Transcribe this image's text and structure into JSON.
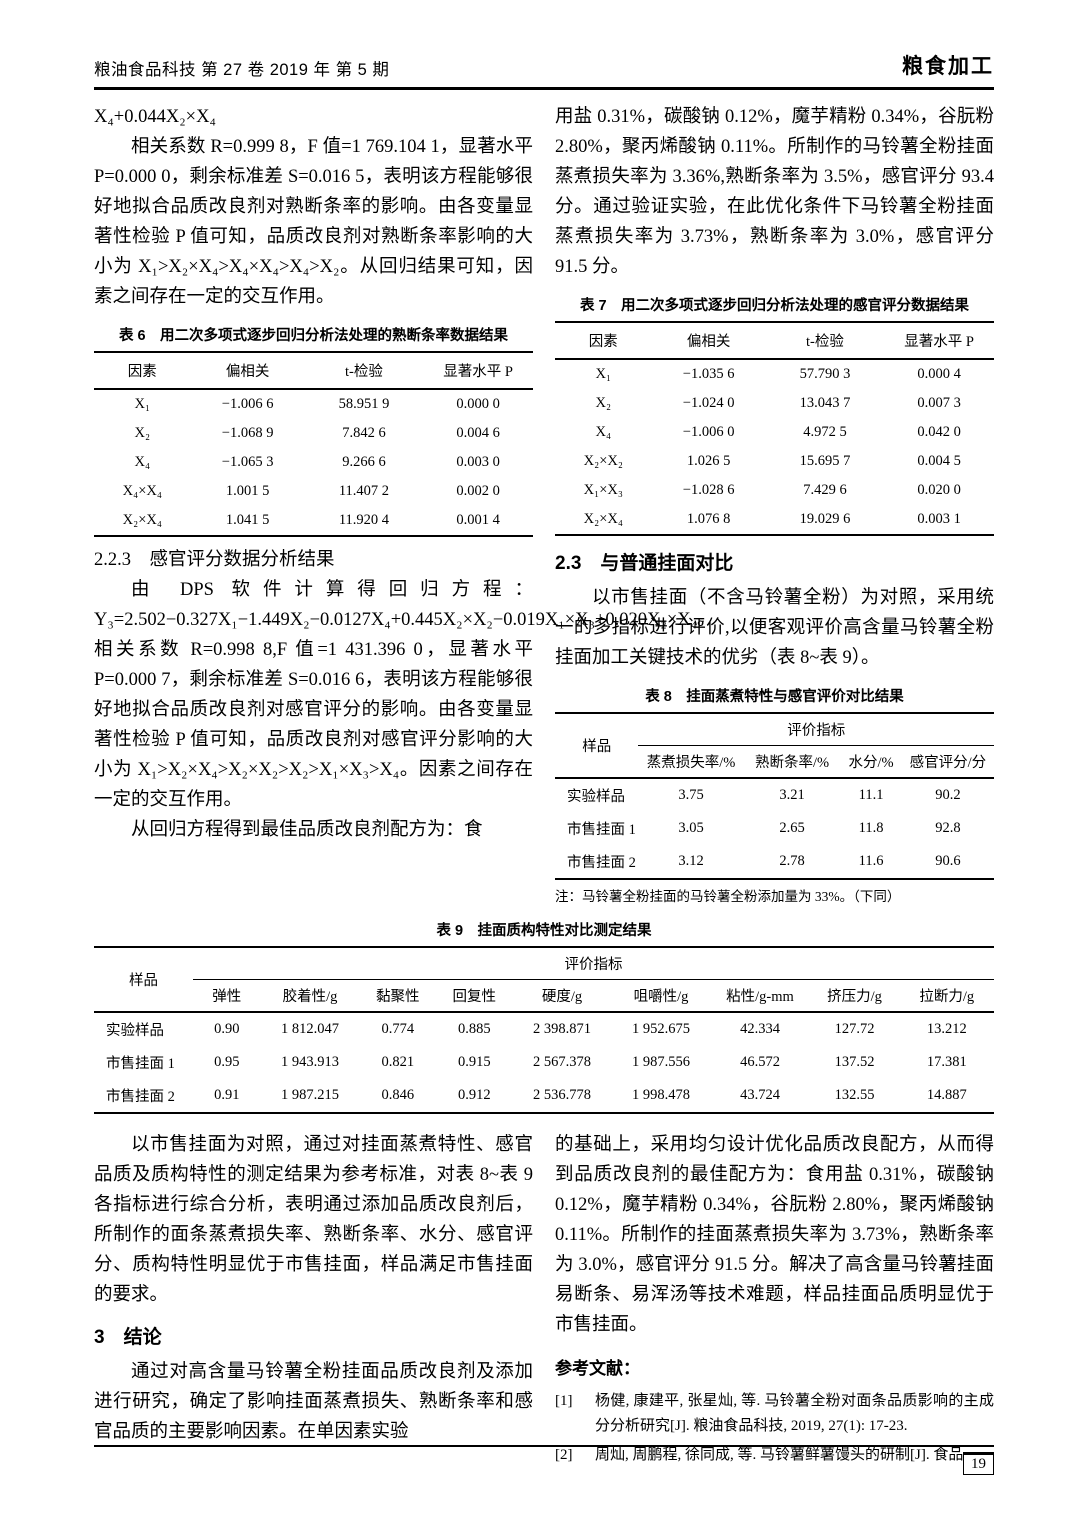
{
  "header": {
    "left": "粮油食品科技 第 27 卷 2019 年 第 5 期",
    "right": "粮食加工"
  },
  "left1": {
    "eq_tail": "X₄+0.044X₂×X₄",
    "p1": "相关系数 R=0.999 8，F 值=1 769.104 1，显著水平 P=0.000 0，剩余标准差 S=0.016 5，表明该方程能够很好地拟合品质改良剂对熟断条率的影响。由各变量显著性检验 P 值可知，品质改良剂对熟断条率影响的大小为 X₁>X₂×X₄>X₄×X₄>X₄>X₂。从回归结果可知，因素之间存在一定的交互作用。",
    "h223": "2.2.3　感官评分数据分析结果",
    "p2": "由 DPS 软件计算得回归方程：Y₃=2.502−0.327X₁−1.449X₂−0.0127X₄+0.445X₂×X₂−0.019X₁×X₃+0.020X₂×X₄。相关系数 R=0.998 8,F 值=1 431.396 0，显著水平 P=0.000 7，剩余标准差 S=0.016 6，表明该方程能够很好地拟合品质改良剂对感官评分的影响。由各变量显著性检验 P 值可知，品质改良剂对感官评分影响的大小为 X₁>X₂×X₄>X₂×X₂>X₂>X₁×X₃>X₄。因素之间存在一定的交互作用。",
    "p3": "从回归方程得到最佳品质改良剂配方为：食"
  },
  "table6": {
    "caption": "表 6　用二次多项式逐步回归分析法处理的熟断条率数据结果",
    "headers": [
      "因素",
      "偏相关",
      "t-检验",
      "显著水平 P"
    ],
    "rows": [
      [
        "X₁",
        "−1.006 6",
        "58.951 9",
        "0.000 0"
      ],
      [
        "X₂",
        "−1.068 9",
        "7.842 6",
        "0.004 6"
      ],
      [
        "X₄",
        "−1.065 3",
        "9.266 6",
        "0.003 0"
      ],
      [
        "X₄×X₄",
        "1.001 5",
        "11.407 2",
        "0.002 0"
      ],
      [
        "X₂×X₄",
        "1.041 5",
        "11.920 4",
        "0.001 4"
      ]
    ]
  },
  "right1": {
    "p0": "用盐 0.31%，碳酸钠 0.12%，魔芋精粉 0.34%，谷朊粉 2.80%，聚丙烯酸钠 0.11%。所制作的马铃薯全粉挂面蒸煮损失率为 3.36%,熟断条率为 3.5%，感官评分 93.4 分。通过验证实验，在此优化条件下马铃薯全粉挂面蒸煮损失率为 3.73%，熟断条率为 3.0%，感官评分 91.5 分。",
    "h23": "2.3　与普通挂面对比",
    "p1": "以市售挂面（不含马铃薯全粉）为对照，采用统一的多指标进行评价,以便客观评价高含量马铃薯全粉挂面加工关键技术的优劣（表 8~表 9）。"
  },
  "table7": {
    "caption": "表 7　用二次多项式逐步回归分析法处理的感官评分数据结果",
    "headers": [
      "因素",
      "偏相关",
      "t-检验",
      "显著水平 P"
    ],
    "rows": [
      [
        "X₁",
        "−1.035 6",
        "57.790 3",
        "0.000 4"
      ],
      [
        "X₂",
        "−1.024 0",
        "13.043 7",
        "0.007 3"
      ],
      [
        "X₄",
        "−1.006 0",
        "4.972 5",
        "0.042 0"
      ],
      [
        "X₂×X₂",
        "1.026 5",
        "15.695 7",
        "0.004 5"
      ],
      [
        "X₁×X₃",
        "−1.028 6",
        "7.429 6",
        "0.020 0"
      ],
      [
        "X₂×X₄",
        "1.076 8",
        "19.029 6",
        "0.003 1"
      ]
    ]
  },
  "table8": {
    "caption": "表 8　挂面蒸煮特性与感官评价对比结果",
    "sample_header": "样品",
    "span_header": "评价指标",
    "sub_headers": [
      "蒸煮损失率/%",
      "熟断条率/%",
      "水分/%",
      "感官评分/分"
    ],
    "rows": [
      [
        "实验样品",
        "3.75",
        "3.21",
        "11.1",
        "90.2"
      ],
      [
        "市售挂面 1",
        "3.05",
        "2.65",
        "11.8",
        "92.8"
      ],
      [
        "市售挂面 2",
        "3.12",
        "2.78",
        "11.6",
        "90.6"
      ]
    ],
    "note": "注：马铃薯全粉挂面的马铃薯全粉添加量为 33%。（下同）"
  },
  "table9": {
    "caption": "表 9　挂面质构特性对比测定结果",
    "sample_header": "样品",
    "span_header": "评价指标",
    "sub_headers": [
      "弹性",
      "胶着性/g",
      "黏聚性",
      "回复性",
      "硬度/g",
      "咀嚼性/g",
      "粘性/g-mm",
      "挤压力/g",
      "拉断力/g"
    ],
    "rows": [
      [
        "实验样品",
        "0.90",
        "1 812.047",
        "0.774",
        "0.885",
        "2 398.871",
        "1 952.675",
        "42.334",
        "127.72",
        "13.212"
      ],
      [
        "市售挂面 1",
        "0.95",
        "1 943.913",
        "0.821",
        "0.915",
        "2 567.378",
        "1 987.556",
        "46.572",
        "137.52",
        "17.381"
      ],
      [
        "市售挂面 2",
        "0.91",
        "1 987.215",
        "0.846",
        "0.912",
        "2 536.778",
        "1 998.478",
        "43.724",
        "132.55",
        "14.887"
      ]
    ]
  },
  "left2": {
    "p1": "以市售挂面为对照，通过对挂面蒸煮特性、感官品质及质构特性的测定结果为参考标准，对表 8~表 9 各指标进行综合分析，表明通过添加品质改良剂后，所制作的面条蒸煮损失率、熟断条率、水分、感官评分、质构特性明显优于市售挂面，样品满足市售挂面的要求。",
    "h3": "3　结论",
    "p2": "通过对高含量马铃薯全粉挂面品质改良剂及添加进行研究，确定了影响挂面蒸煮损失、熟断条率和感官品质的主要影响因素。在单因素实验"
  },
  "right2": {
    "p1": "的基础上，采用均匀设计优化品质改良配方，从而得到品质改良剂的最佳配方为：食用盐 0.31%，碳酸钠 0.12%，魔芋精粉 0.34%，谷朊粉 2.80%，聚丙烯酸钠 0.11%。所制作的挂面蒸煮损失率为 3.73%，熟断条率为 3.0%，感官评分 91.5 分。解决了高含量马铃薯挂面易断条、易浑汤等技术难题，样品挂面品质明显优于市售挂面。",
    "refhead": "参考文献：",
    "refs": [
      {
        "num": "[1]",
        "text": "杨健, 康建平, 张星灿, 等. 马铃薯全粉对面条品质影响的主成分分析研究[J]. 粮油食品科技, 2019, 27(1): 17-23."
      },
      {
        "num": "[2]",
        "text": "周灿, 周鹏程, 徐同成, 等. 马铃薯鲜薯馒头的研制[J]. 食品"
      }
    ]
  },
  "footer": {
    "page_number": "19"
  }
}
